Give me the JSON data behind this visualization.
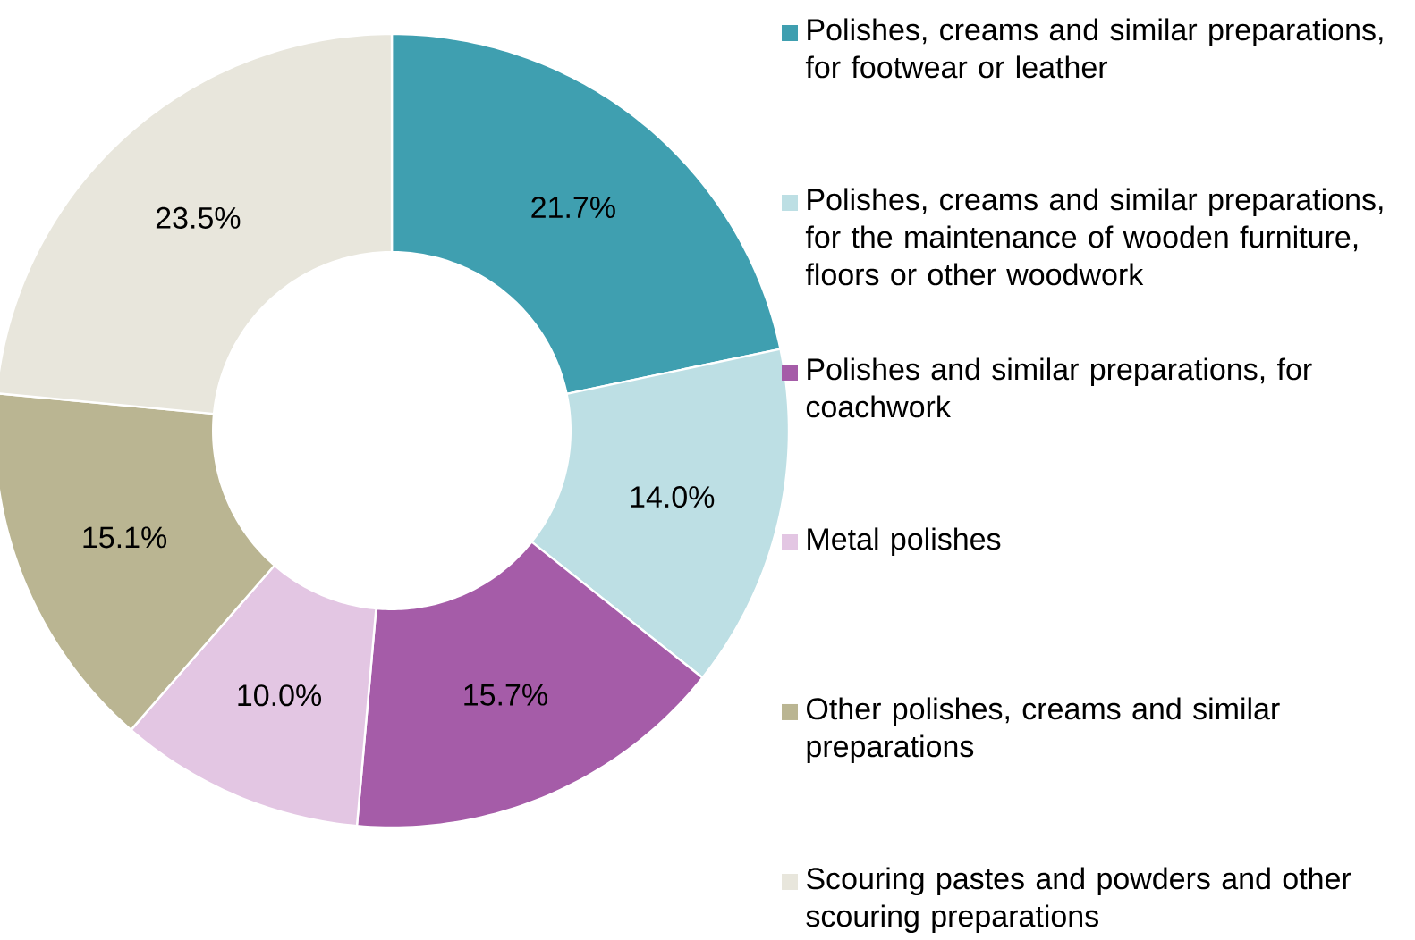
{
  "chart_data": {
    "type": "donut",
    "categories": [
      "Polishes, creams and similar preparations, for footwear or leather",
      "Polishes, creams and similar preparations, for the maintenance of wooden furniture, floors or other woodwork",
      "Polishes and similar preparations, for coachwork",
      "Metal polishes",
      "Other polishes, creams and similar preparations",
      "Scouring pastes and powders and other scouring preparations"
    ],
    "values": [
      21.7,
      14.0,
      15.7,
      10.0,
      15.1,
      23.5
    ],
    "value_labels": [
      "21.7%",
      "14.0%",
      "15.7%",
      "10.0%",
      "15.1%",
      "23.5%"
    ],
    "colors": [
      "#3f9fb0",
      "#bddfe4",
      "#a55ca8",
      "#e3c6e3",
      "#bab592",
      "#e8e6dc"
    ],
    "legend": "right"
  }
}
